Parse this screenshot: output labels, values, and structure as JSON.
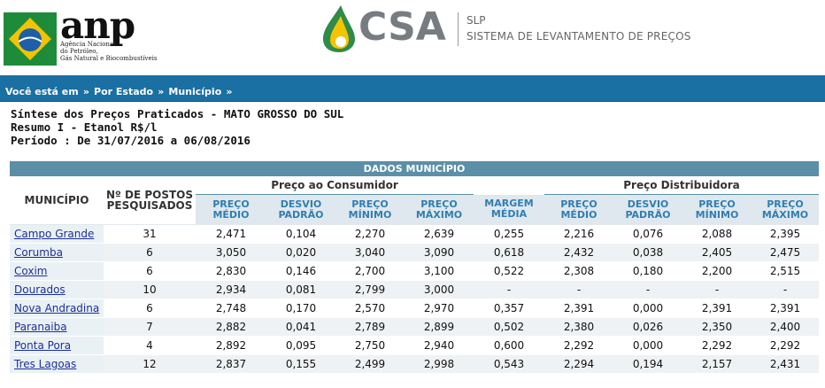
{
  "header": {
    "anp_word": "anp",
    "anp_subtitle_lines": [
      "Agência Nacional",
      "do Petróleo,",
      "Gás Natural e Biocombustíveis"
    ],
    "csa_word": "CSA",
    "slp_title": "SLP",
    "slp_subtitle": "SISTEMA DE LEVANTAMENTO DE PREÇOS"
  },
  "nav": {
    "prefix": "Você está em",
    "items": [
      "Por Estado",
      "Município"
    ],
    "separator": "»"
  },
  "summary": {
    "line1": "Síntese dos Preços Praticados - MATO GROSSO DO SUL",
    "line2": "Resumo I - Etanol R$/l",
    "line3": "Período : De 31/07/2016 a 06/08/2016"
  },
  "table": {
    "title": "DADOS MUNICÍPIO",
    "group_consumidor": "Preço ao Consumidor",
    "group_distribuidora": "Preço Distribuidora",
    "col_municipio": "MUNICÍPIO",
    "col_postos": [
      "Nº DE POSTOS",
      "PESQUISADOS"
    ],
    "cols_consumidor": [
      [
        "PREÇO",
        "MÉDIO"
      ],
      [
        "DESVIO",
        "PADRÃO"
      ],
      [
        "PREÇO",
        "MÍNIMO"
      ],
      [
        "PREÇO",
        "MÁXIMO"
      ]
    ],
    "col_margem": [
      "MARGEM",
      "MÉDIA"
    ],
    "cols_distribuidora": [
      [
        "PREÇO",
        "MÉDIO"
      ],
      [
        "DESVIO",
        "PADRÃO"
      ],
      [
        "PREÇO",
        "MÍNIMO"
      ],
      [
        "PREÇO",
        "MÁXIMO"
      ]
    ],
    "rows": [
      {
        "municipio": "Campo Grande",
        "postos": "31",
        "c_medio": "2,471",
        "c_desvio": "0,104",
        "c_min": "2,270",
        "c_max": "2,639",
        "margem": "0,255",
        "d_medio": "2,216",
        "d_desvio": "0,076",
        "d_min": "2,088",
        "d_max": "2,395"
      },
      {
        "municipio": "Corumba",
        "postos": "6",
        "c_medio": "3,050",
        "c_desvio": "0,020",
        "c_min": "3,040",
        "c_max": "3,090",
        "margem": "0,618",
        "d_medio": "2,432",
        "d_desvio": "0,038",
        "d_min": "2,405",
        "d_max": "2,475"
      },
      {
        "municipio": "Coxim",
        "postos": "6",
        "c_medio": "2,830",
        "c_desvio": "0,146",
        "c_min": "2,700",
        "c_max": "3,100",
        "margem": "0,522",
        "d_medio": "2,308",
        "d_desvio": "0,180",
        "d_min": "2,200",
        "d_max": "2,515"
      },
      {
        "municipio": "Dourados",
        "postos": "10",
        "c_medio": "2,934",
        "c_desvio": "0,081",
        "c_min": "2,799",
        "c_max": "3,000",
        "margem": "-",
        "d_medio": "-",
        "d_desvio": "-",
        "d_min": "-",
        "d_max": "-"
      },
      {
        "municipio": "Nova Andradina",
        "postos": "6",
        "c_medio": "2,748",
        "c_desvio": "0,170",
        "c_min": "2,570",
        "c_max": "2,970",
        "margem": "0,357",
        "d_medio": "2,391",
        "d_desvio": "0,000",
        "d_min": "2,391",
        "d_max": "2,391"
      },
      {
        "municipio": "Paranaiba",
        "postos": "7",
        "c_medio": "2,882",
        "c_desvio": "0,041",
        "c_min": "2,789",
        "c_max": "2,899",
        "margem": "0,502",
        "d_medio": "2,380",
        "d_desvio": "0,026",
        "d_min": "2,350",
        "d_max": "2,400"
      },
      {
        "municipio": "Ponta Pora",
        "postos": "4",
        "c_medio": "2,892",
        "c_desvio": "0,095",
        "c_min": "2,750",
        "c_max": "2,940",
        "margem": "0,600",
        "d_medio": "2,292",
        "d_desvio": "0,000",
        "d_min": "2,292",
        "d_max": "2,292"
      },
      {
        "municipio": "Tres Lagoas",
        "postos": "12",
        "c_medio": "2,837",
        "c_desvio": "0,155",
        "c_min": "2,499",
        "c_max": "2,998",
        "margem": "0,543",
        "d_medio": "2,294",
        "d_desvio": "0,194",
        "d_min": "2,157",
        "d_max": "2,431"
      }
    ]
  },
  "colors": {
    "nav_bar": "#1a6fa3",
    "table_title_bar": "#5b8fa8",
    "header_cell_bg": "#dfe8ee",
    "header_text": "#2f7eb3",
    "link": "#1c2f9a",
    "anp_green": "#1e8b3a",
    "anp_yellow": "#f2c300",
    "anp_blue": "#1d5fa8",
    "csa_green": "#2e8b4a",
    "csa_yellow": "#f5c400",
    "csa_gray": "#777c82"
  }
}
